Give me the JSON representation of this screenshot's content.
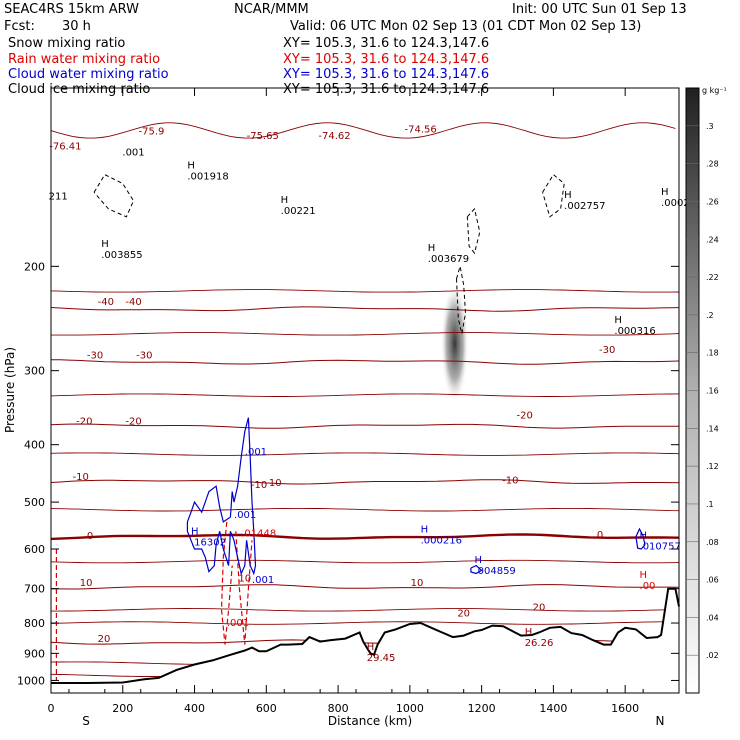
{
  "header": {
    "model": "SEAC4RS 15km ARW",
    "org": "NCAR/MMM",
    "init": "Init: 00 UTC Sun 01 Sep 13",
    "fcst_label": "Fcst:",
    "fcst_value": "30 h",
    "valid": "Valid: 06 UTC Mon 02 Sep 13 (01 CDT Mon 02 Sep 13)"
  },
  "fields": [
    {
      "name": "Snow mixing ratio",
      "xy": "XY= 105.3, 31.6 to 124.3,147.6",
      "color": "#000000"
    },
    {
      "name": "Rain water mixing ratio",
      "xy": "XY= 105.3, 31.6 to 124.3,147.6",
      "color": "#dd0000"
    },
    {
      "name": "Cloud water mixing ratio",
      "xy": "XY= 105.3, 31.6 to 124.3,147.6",
      "color": "#0000cc"
    },
    {
      "name": "Cloud ice mixing ratio",
      "xy": "XY= 105.3, 31.6 to 124.3,147.6",
      "color": "#000000"
    }
  ],
  "chart_data": {
    "type": "cross-section",
    "xlabel": "Distance (km)",
    "ylabel": "Pressure (hPa)",
    "xlim": [
      0,
      1750
    ],
    "ylim": [
      1050,
      100
    ],
    "yscale": "log",
    "x_ticks": [
      0,
      200,
      400,
      600,
      800,
      1000,
      1200,
      1400,
      1600
    ],
    "y_ticks": [
      200,
      300,
      400,
      500,
      600,
      700,
      800,
      900,
      1000
    ],
    "end_labels": {
      "left": "S",
      "right": "N"
    },
    "colorbar": {
      "unit": "g kg⁻¹",
      "ticks": [
        ".3",
        ".28",
        ".26",
        ".24",
        ".22",
        ".2",
        ".18",
        ".16",
        ".14",
        ".12",
        ".1",
        ".08",
        ".06",
        ".04",
        ".02"
      ],
      "range": [
        0,
        0.32
      ]
    },
    "temperature_contours": [
      {
        "label": "20",
        "p": 862,
        "lx": 130,
        "lp": 848
      },
      {
        "label": "10",
        "p": 695,
        "lx": 80,
        "lp": 682
      },
      {
        "label": "0",
        "p": 572,
        "lx": 100,
        "lp": 568
      },
      {
        "label": "-10",
        "p": 462,
        "lx": 60,
        "lp": 452
      },
      {
        "label": "-20",
        "p": 372,
        "lx": 70,
        "lp": 364
      },
      {
        "label": "-30",
        "p": 290,
        "lx": 100,
        "lp": 282
      },
      {
        "label": "-40",
        "p": 236,
        "lx": 130,
        "lp": 229
      }
    ],
    "contour_labels": [
      {
        "text": "-10",
        "x": 580,
        "p": 466,
        "color": "#8b0000"
      },
      {
        "text": "-10",
        "x": 1280,
        "p": 458,
        "color": "#8b0000"
      },
      {
        "text": "-20",
        "x": 230,
        "p": 364,
        "color": "#8b0000"
      },
      {
        "text": "-20",
        "x": 1320,
        "p": 356,
        "color": "#8b0000"
      },
      {
        "text": "-30",
        "x": 260,
        "p": 282,
        "color": "#8b0000"
      },
      {
        "text": "-30",
        "x": 1550,
        "p": 276,
        "color": "#8b0000"
      },
      {
        "text": "-40",
        "x": 230,
        "p": 229,
        "color": "#8b0000"
      },
      {
        "text": "-10",
        "x": 620,
        "p": 462,
        "color": "#8b0000"
      },
      {
        "text": "0",
        "x": 1530,
        "p": 566,
        "color": "#8b0000"
      },
      {
        "text": "10",
        "x": 1020,
        "p": 682,
        "color": "#8b0000"
      },
      {
        "text": "10",
        "x": 540,
        "p": 670,
        "color": "#8b0000"
      },
      {
        "text": "20",
        "x": 1150,
        "p": 768,
        "color": "#8b0000"
      },
      {
        "text": "20",
        "x": 1360,
        "p": 750,
        "color": "#8b0000"
      },
      {
        "text": "-75.65",
        "x": 590,
        "p": 120,
        "color": "#8b0000"
      },
      {
        "text": "-74.62",
        "x": 790,
        "p": 120,
        "color": "#8b0000"
      },
      {
        "text": "-74.56",
        "x": 1030,
        "p": 117,
        "color": "#8b0000"
      },
      {
        "text": "-75.9",
        "x": 280,
        "p": 118,
        "color": "#8b0000"
      },
      {
        "text": "-76.41",
        "x": 40,
        "p": 125,
        "color": "#8b0000"
      },
      {
        "text": "211",
        "x": 20,
        "p": 152,
        "color": "#000000"
      },
      {
        "text": ".001",
        "x": 230,
        "p": 128,
        "color": "#000000"
      }
    ],
    "extrema": [
      {
        "label": "H",
        "value": ".001918",
        "x": 380,
        "p": 140,
        "color": "#000000"
      },
      {
        "label": "H",
        "value": ".00221",
        "x": 640,
        "p": 160,
        "color": "#000000"
      },
      {
        "label": "H",
        "value": ".003855",
        "x": 140,
        "p": 190,
        "color": "#000000"
      },
      {
        "label": "H",
        "value": ".003679",
        "x": 1050,
        "p": 193,
        "color": "#000000"
      },
      {
        "label": "H",
        "value": ".002757",
        "x": 1430,
        "p": 157,
        "color": "#000000"
      },
      {
        "label": "H",
        "value": ".0002",
        "x": 1700,
        "p": 155,
        "color": "#000000"
      },
      {
        "label": "H",
        "value": ".000316",
        "x": 1570,
        "p": 255,
        "color": "#000000"
      },
      {
        "label": "H",
        "value": ".16302",
        "x": 390,
        "p": 580,
        "color": "#0000cc"
      },
      {
        "label": "H",
        "value": ".000216",
        "x": 1030,
        "p": 576,
        "color": "#0000cc"
      },
      {
        "label": "H",
        "value": ".004859",
        "x": 1180,
        "p": 648,
        "color": "#0000cc"
      },
      {
        "label": "H",
        "value": ".010757",
        "x": 1640,
        "p": 590,
        "color": "#0000cc"
      },
      {
        "label": "",
        "value": ".001",
        "x": 540,
        "p": 408,
        "color": "#0000cc"
      },
      {
        "label": "",
        "value": ".001",
        "x": 510,
        "p": 522,
        "color": "#0000cc"
      },
      {
        "label": "",
        "value": ".001",
        "x": 560,
        "p": 672,
        "color": "#0000cc"
      },
      {
        "label": "",
        "value": ".01448",
        "x": 530,
        "p": 560,
        "color": "#dd0000"
      },
      {
        "label": "",
        "value": ".001",
        "x": 490,
        "p": 793,
        "color": "#dd0000"
      },
      {
        "label": "H",
        "value": ".00",
        "x": 1640,
        "p": 688,
        "color": "#dd0000"
      },
      {
        "label": "H",
        "value": "29.45",
        "x": 880,
        "p": 910,
        "color": "#8b0000"
      },
      {
        "label": "H",
        "value": "26.26",
        "x": 1320,
        "p": 858,
        "color": "#8b0000"
      }
    ],
    "terrain": {
      "x": [
        0,
        100,
        200,
        260,
        300,
        350,
        400,
        450,
        500,
        540,
        560,
        580,
        600,
        640,
        660,
        700,
        720,
        750,
        780,
        820,
        850,
        860,
        870,
        880,
        890,
        900,
        910,
        930,
        960,
        1000,
        1030,
        1060,
        1090,
        1120,
        1150,
        1180,
        1200,
        1230,
        1260,
        1290,
        1310,
        1340,
        1360,
        1390,
        1420,
        1450,
        1480,
        1510,
        1540,
        1560,
        1580,
        1600,
        1630,
        1660,
        1690,
        1700,
        1720,
        1740,
        1750
      ],
      "p": [
        1010,
        1010,
        1008,
        995,
        990,
        960,
        940,
        925,
        905,
        890,
        880,
        893,
        893,
        870,
        870,
        868,
        845,
        860,
        855,
        850,
        835,
        830,
        860,
        880,
        900,
        905,
        870,
        830,
        820,
        803,
        800,
        815,
        830,
        845,
        840,
        826,
        822,
        808,
        810,
        828,
        840,
        838,
        830,
        815,
        812,
        832,
        838,
        855,
        870,
        870,
        830,
        815,
        820,
        848,
        845,
        838,
        700,
        700,
        750
      ]
    },
    "rain_contour": [
      [
        [
          15,
          600
        ],
        [
          15,
          1000
        ]
      ],
      [
        [
          490,
          540
        ],
        [
          480,
          620
        ],
        [
          475,
          760
        ],
        [
          485,
          870
        ],
        [
          495,
          760
        ],
        [
          505,
          640
        ]
      ],
      [
        [
          515,
          560
        ],
        [
          525,
          700
        ],
        [
          540,
          870
        ],
        [
          550,
          700
        ],
        [
          560,
          580
        ]
      ]
    ],
    "cloud_contour": [
      [
        [
          380,
          540
        ],
        [
          390,
          520
        ],
        [
          400,
          500
        ],
        [
          420,
          520
        ],
        [
          440,
          480
        ],
        [
          460,
          470
        ],
        [
          470,
          510
        ],
        [
          480,
          540
        ],
        [
          500,
          530
        ],
        [
          505,
          480
        ],
        [
          510,
          500
        ],
        [
          520,
          470
        ],
        [
          530,
          420
        ],
        [
          540,
          380
        ],
        [
          550,
          360
        ],
        [
          555,
          420
        ],
        [
          560,
          500
        ],
        [
          565,
          560
        ],
        [
          570,
          640
        ],
        [
          565,
          660
        ],
        [
          555,
          640
        ],
        [
          545,
          580
        ],
        [
          540,
          640
        ],
        [
          530,
          660
        ],
        [
          520,
          620
        ],
        [
          510,
          580
        ],
        [
          500,
          560
        ],
        [
          495,
          640
        ],
        [
          480,
          600
        ],
        [
          470,
          560
        ],
        [
          460,
          590
        ],
        [
          455,
          640
        ],
        [
          440,
          655
        ],
        [
          430,
          620
        ],
        [
          420,
          600
        ],
        [
          400,
          600
        ],
        [
          390,
          580
        ],
        [
          380,
          560
        ],
        [
          380,
          540
        ]
      ],
      [
        [
          1170,
          646
        ],
        [
          1185,
          640
        ],
        [
          1200,
          652
        ],
        [
          1185,
          660
        ],
        [
          1170,
          656
        ],
        [
          1170,
          646
        ]
      ],
      [
        [
          1630,
          572
        ],
        [
          1640,
          555
        ],
        [
          1650,
          570
        ],
        [
          1655,
          590
        ],
        [
          1645,
          600
        ],
        [
          1635,
          598
        ],
        [
          1630,
          572
        ]
      ]
    ],
    "ice_contour": [
      [
        [
          1130,
          210
        ],
        [
          1140,
          200
        ],
        [
          1150,
          215
        ],
        [
          1155,
          240
        ],
        [
          1145,
          260
        ],
        [
          1135,
          245
        ],
        [
          1130,
          210
        ]
      ],
      [
        [
          1160,
          165
        ],
        [
          1180,
          160
        ],
        [
          1195,
          175
        ],
        [
          1180,
          190
        ],
        [
          1165,
          185
        ],
        [
          1160,
          165
        ]
      ],
      [
        [
          1370,
          150
        ],
        [
          1400,
          140
        ],
        [
          1430,
          145
        ],
        [
          1420,
          160
        ],
        [
          1390,
          165
        ],
        [
          1370,
          150
        ]
      ],
      [
        [
          120,
          150
        ],
        [
          150,
          140
        ],
        [
          200,
          145
        ],
        [
          230,
          155
        ],
        [
          210,
          165
        ],
        [
          160,
          160
        ],
        [
          120,
          150
        ]
      ]
    ],
    "ice_maximum": {
      "x": 1125,
      "p": 270,
      "value": 0.28
    }
  }
}
